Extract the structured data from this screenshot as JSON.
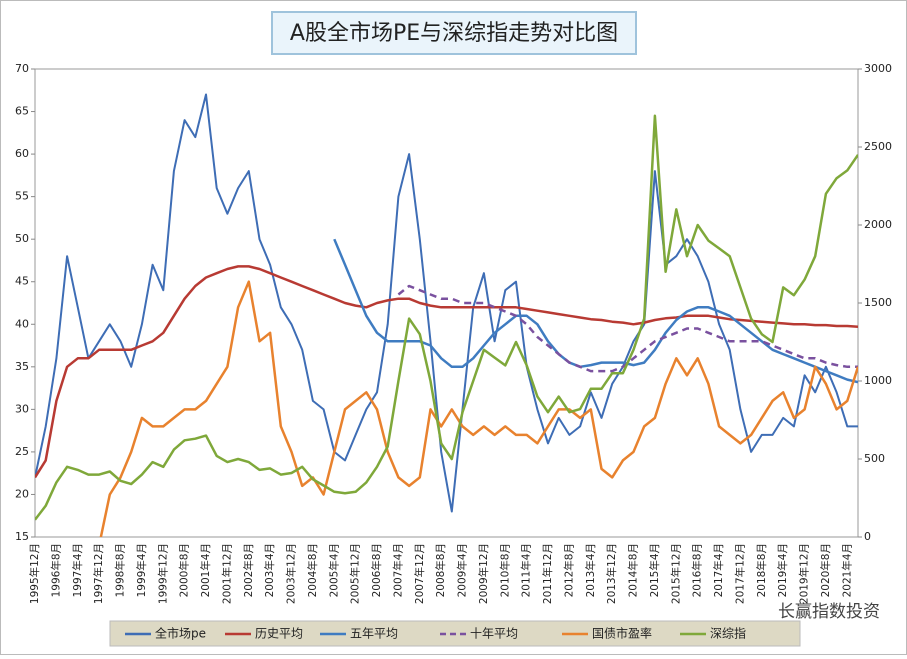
{
  "chart_data": {
    "type": "line",
    "title": "A股全市场PE与深综指走势对比图",
    "watermark": "长赢指数投资",
    "categories": [
      "1995年12月",
      null,
      "1996年8月",
      null,
      "1997年4月",
      null,
      "1997年12月",
      null,
      "1998年8月",
      null,
      "1999年4月",
      null,
      "1999年12月",
      null,
      "2000年8月",
      null,
      "2001年4月",
      null,
      "2001年12月",
      null,
      "2002年8月",
      null,
      "2003年4月",
      null,
      "2003年12月",
      null,
      "2004年8月",
      null,
      "2005年4月",
      null,
      "2005年12月",
      null,
      "2006年8月",
      null,
      "2007年4月",
      null,
      "2007年12月",
      null,
      "2008年8月",
      null,
      "2009年4月",
      null,
      "2009年12月",
      null,
      "2010年8月",
      null,
      "2011年4月",
      null,
      "2011年12月",
      null,
      "2012年8月",
      null,
      "2013年4月",
      null,
      "2013年12月",
      null,
      "2014年8月",
      null,
      "2015年4月",
      null,
      "2015年12月",
      null,
      "2016年8月",
      null,
      "2017年4月",
      null,
      "2017年12月",
      null,
      "2018年8月",
      null,
      "2019年4月",
      null,
      "2019年12月",
      null,
      "2020年8月",
      null,
      "2021年4月",
      null
    ],
    "ylim": [
      15,
      70
    ],
    "yticks": [
      15,
      20,
      25,
      30,
      35,
      40,
      45,
      50,
      55,
      60,
      65,
      70
    ],
    "y2lim": [
      0,
      3000
    ],
    "y2ticks": [
      0,
      500,
      1000,
      1500,
      2000,
      2500,
      3000
    ],
    "series": [
      {
        "name": "全市场pe",
        "color": "#3e6db5",
        "values": [
          22,
          28,
          36,
          48,
          42,
          36,
          38,
          40,
          38,
          35,
          40,
          47,
          44,
          58,
          64,
          62,
          67,
          56,
          53,
          56,
          58,
          50,
          47,
          42,
          40,
          37,
          31,
          30,
          25,
          24,
          27,
          30,
          32,
          40,
          55,
          60,
          50,
          38,
          25,
          18,
          30,
          42,
          46,
          38,
          44,
          45,
          35,
          30,
          26,
          29,
          27,
          28,
          32,
          29,
          33,
          35,
          38,
          40,
          58,
          47,
          48,
          50,
          48,
          45,
          40,
          37,
          30,
          25,
          27,
          27,
          29,
          28,
          34,
          32,
          35,
          32,
          28,
          28
        ]
      },
      {
        "name": "历史平均",
        "color": "#b83a33",
        "values": [
          22,
          24,
          31,
          35,
          36,
          36,
          37,
          37,
          37,
          37,
          37.5,
          38,
          39,
          41,
          43,
          44.5,
          45.5,
          46,
          46.5,
          46.8,
          46.8,
          46.5,
          46,
          45.5,
          45,
          44.5,
          44,
          43.5,
          43,
          42.5,
          42.2,
          42,
          42.5,
          42.8,
          43,
          43,
          42.5,
          42.2,
          42,
          42,
          42,
          42,
          42,
          42,
          42,
          42,
          41.8,
          41.6,
          41.4,
          41.2,
          41,
          40.8,
          40.6,
          40.5,
          40.3,
          40.2,
          40,
          40.2,
          40.5,
          40.7,
          40.8,
          41,
          41,
          41,
          40.8,
          40.6,
          40.5,
          40.4,
          40.3,
          40.2,
          40.1,
          40,
          40,
          39.9,
          39.9,
          39.8,
          39.8,
          39.7
        ]
      },
      {
        "name": "五年平均",
        "color": "#3f7cc1",
        "values": [
          null,
          null,
          null,
          null,
          null,
          null,
          null,
          null,
          null,
          null,
          null,
          null,
          null,
          null,
          null,
          null,
          null,
          null,
          null,
          null,
          null,
          null,
          null,
          null,
          null,
          null,
          null,
          null,
          50,
          47,
          44,
          41,
          39,
          38,
          38,
          38,
          38,
          37.5,
          36,
          35,
          35,
          36,
          37.5,
          39,
          40,
          41,
          41,
          40,
          38,
          36.5,
          35.5,
          35,
          35.2,
          35.5,
          35.5,
          35.5,
          35.2,
          35.5,
          37,
          39,
          40.5,
          41.5,
          42,
          42,
          41.5,
          41,
          40,
          39,
          38,
          37,
          36.5,
          36,
          35.5,
          35,
          34.5,
          34,
          33.5,
          33.2
        ]
      },
      {
        "name": "十年平均",
        "color": "#7a519f",
        "values": [
          null,
          null,
          null,
          null,
          null,
          null,
          null,
          null,
          null,
          null,
          null,
          null,
          null,
          null,
          null,
          null,
          null,
          null,
          null,
          null,
          null,
          null,
          null,
          null,
          null,
          null,
          null,
          null,
          null,
          null,
          null,
          null,
          null,
          null,
          43.5,
          44.5,
          44,
          43.5,
          43,
          43,
          42.5,
          42.5,
          42.5,
          42,
          41.5,
          41,
          40,
          38.5,
          37.5,
          36.5,
          35.5,
          35,
          34.5,
          34.5,
          34.5,
          35,
          36,
          37,
          38,
          38.5,
          39,
          39.5,
          39.5,
          39,
          38.5,
          38,
          38,
          38,
          38,
          37.5,
          37,
          36.5,
          36,
          36,
          35.5,
          35.2,
          35,
          35
        ]
      },
      {
        "name": "国债市盈率",
        "color": "#e8822e",
        "values": [
          null,
          null,
          null,
          null,
          null,
          null,
          14,
          20,
          22,
          25,
          29,
          28,
          28,
          29,
          30,
          30,
          31,
          33,
          35,
          42,
          45,
          38,
          39,
          28,
          25,
          21,
          22,
          20,
          25,
          30,
          31,
          32,
          30,
          25,
          22,
          21,
          22,
          30,
          28,
          30,
          28,
          27,
          28,
          27,
          28,
          27,
          27,
          26,
          28,
          30,
          30,
          29,
          30,
          23,
          22,
          24,
          25,
          28,
          29,
          33,
          36,
          34,
          36,
          33,
          28,
          27,
          26,
          27,
          29,
          31,
          32,
          29,
          30,
          35,
          33,
          30,
          31,
          35
        ]
      },
      {
        "name": "深综指",
        "color": "#7fa83a",
        "axis": "y2",
        "values": [
          110,
          200,
          350,
          450,
          430,
          400,
          400,
          420,
          360,
          340,
          400,
          480,
          450,
          560,
          620,
          630,
          650,
          520,
          480,
          500,
          480,
          430,
          440,
          400,
          410,
          450,
          370,
          330,
          290,
          280,
          290,
          350,
          450,
          580,
          1000,
          1400,
          1300,
          1000,
          600,
          500,
          800,
          1000,
          1200,
          1150,
          1100,
          1250,
          1100,
          900,
          800,
          900,
          800,
          820,
          950,
          950,
          1050,
          1050,
          1200,
          1400,
          2700,
          1700,
          2100,
          1800,
          2000,
          1900,
          1850,
          1800,
          1600,
          1400,
          1300,
          1250,
          1600,
          1550,
          1650,
          1800,
          2200,
          2300,
          2350,
          2450
        ]
      }
    ]
  }
}
